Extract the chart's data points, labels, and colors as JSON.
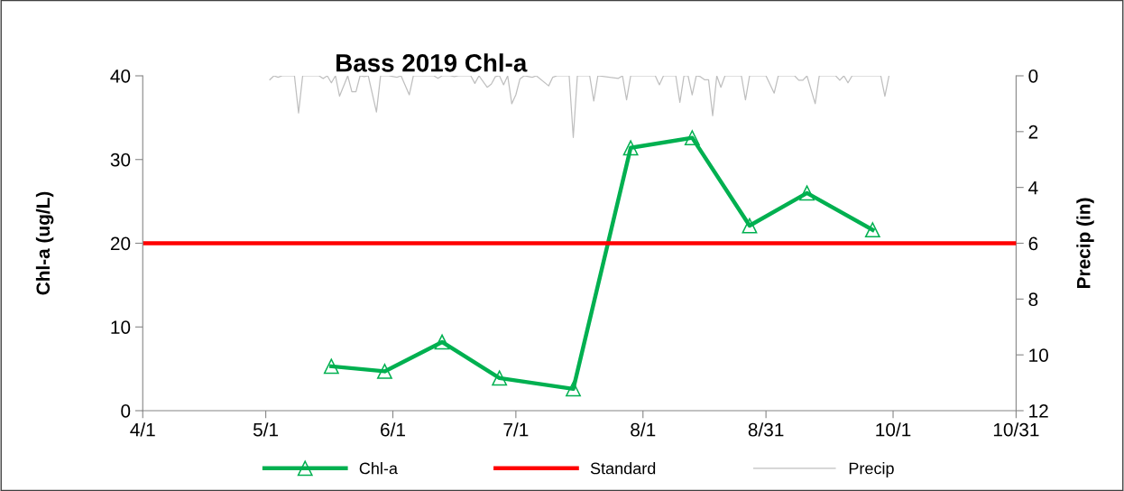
{
  "chart_data": {
    "type": "line",
    "title": "Bass 2019 Chl-a",
    "ylabel": "Chl-a (ug/L)",
    "y2label": "Precip (in)",
    "xlim": [
      "2019-04-01",
      "2019-10-31"
    ],
    "xticks": [
      {
        "value": "2019-04-01",
        "label": "4/1"
      },
      {
        "value": "2019-05-01",
        "label": "5/1"
      },
      {
        "value": "2019-06-01",
        "label": "6/1"
      },
      {
        "value": "2019-07-01",
        "label": "7/1"
      },
      {
        "value": "2019-08-01",
        "label": "8/1"
      },
      {
        "value": "2019-08-31",
        "label": "8/31"
      },
      {
        "value": "2019-10-01",
        "label": "10/1"
      },
      {
        "value": "2019-10-31",
        "label": "10/31"
      }
    ],
    "ylim": [
      0,
      40
    ],
    "yticks": [
      0,
      10,
      20,
      30,
      40
    ],
    "y2lim": [
      12,
      0
    ],
    "y2ticks": [
      0,
      2,
      4,
      6,
      8,
      10,
      12
    ],
    "grid": false,
    "legend": "bottom",
    "ref_lines": [
      {
        "axis": "y",
        "value": 20,
        "label": "Standard",
        "color": "#ff0000",
        "line_style": "solid"
      }
    ],
    "series": [
      {
        "name": "Chl-a",
        "color": "#00b050",
        "marker": "triangle",
        "line_style": "solid",
        "x": [
          "2019-05-17",
          "2019-05-30",
          "2019-06-13",
          "2019-06-27",
          "2019-07-15",
          "2019-07-29",
          "2019-08-13",
          "2019-08-27",
          "2019-09-10",
          "2019-09-26"
        ],
        "values": [
          5.3,
          4.7,
          8.2,
          3.9,
          2.6,
          31.4,
          32.6,
          22.1,
          26.0,
          21.6
        ]
      },
      {
        "name": "Precip",
        "color": "#bfbfbf",
        "marker": "none",
        "line_style": "solid",
        "axis": "y2",
        "x": [
          "2019-05-02",
          "2019-05-03",
          "2019-05-04",
          "2019-05-05",
          "2019-05-08",
          "2019-05-09",
          "2019-05-10",
          "2019-05-14",
          "2019-05-15",
          "2019-05-16",
          "2019-05-17",
          "2019-05-18",
          "2019-05-19",
          "2019-05-21",
          "2019-05-22",
          "2019-05-23",
          "2019-05-24",
          "2019-05-25",
          "2019-05-26",
          "2019-05-28",
          "2019-05-29",
          "2019-05-31",
          "2019-06-02",
          "2019-06-03",
          "2019-06-05",
          "2019-06-06",
          "2019-06-11",
          "2019-06-12",
          "2019-06-13",
          "2019-06-15",
          "2019-06-16",
          "2019-06-17",
          "2019-06-20",
          "2019-06-21",
          "2019-06-22",
          "2019-06-24",
          "2019-06-25",
          "2019-06-26",
          "2019-06-27",
          "2019-06-28",
          "2019-06-29",
          "2019-06-30",
          "2019-07-01",
          "2019-07-02",
          "2019-07-03",
          "2019-07-05",
          "2019-07-06",
          "2019-07-09",
          "2019-07-10",
          "2019-07-11",
          "2019-07-14",
          "2019-07-15",
          "2019-07-16",
          "2019-07-19",
          "2019-07-20",
          "2019-07-21",
          "2019-07-26",
          "2019-07-27",
          "2019-07-28",
          "2019-07-29",
          "2019-08-04",
          "2019-08-05",
          "2019-08-06",
          "2019-08-09",
          "2019-08-10",
          "2019-08-11",
          "2019-08-12",
          "2019-08-13",
          "2019-08-14",
          "2019-08-15",
          "2019-08-16",
          "2019-08-17",
          "2019-08-18",
          "2019-08-19",
          "2019-08-20",
          "2019-08-21",
          "2019-08-25",
          "2019-08-26",
          "2019-08-27",
          "2019-08-31",
          "2019-09-02",
          "2019-09-03",
          "2019-09-07",
          "2019-09-08",
          "2019-09-09",
          "2019-09-10",
          "2019-09-12",
          "2019-09-13",
          "2019-09-17",
          "2019-09-18",
          "2019-09-19",
          "2019-09-20",
          "2019-09-21",
          "2019-09-28",
          "2019-09-29",
          "2019-09-30"
        ],
        "values": [
          0.14,
          0,
          0.05,
          0,
          0,
          1.33,
          0,
          0,
          0.1,
          0,
          0.25,
          0,
          0.73,
          0,
          0.57,
          0.57,
          0,
          0.03,
          0,
          1.3,
          0,
          0,
          0.05,
          0,
          0.68,
          0,
          0,
          0.09,
          0,
          0,
          0.03,
          0,
          0,
          0.27,
          0,
          0.41,
          0.3,
          0.03,
          0,
          0.32,
          0,
          1.0,
          0.68,
          0.11,
          0,
          0.05,
          0,
          0.36,
          0.05,
          0,
          0,
          2.21,
          0,
          0,
          0.9,
          0,
          0.09,
          0,
          0.86,
          0,
          0,
          0.32,
          0,
          0,
          0.95,
          0,
          0,
          0.68,
          0,
          0.03,
          0.14,
          0.14,
          1.43,
          0,
          0.41,
          0,
          0,
          0.86,
          0,
          0,
          0.62,
          0,
          0,
          0.16,
          0.16,
          0,
          1.0,
          0,
          0,
          0.16,
          0,
          0.25,
          0,
          0,
          0.73,
          0
        ]
      }
    ]
  }
}
